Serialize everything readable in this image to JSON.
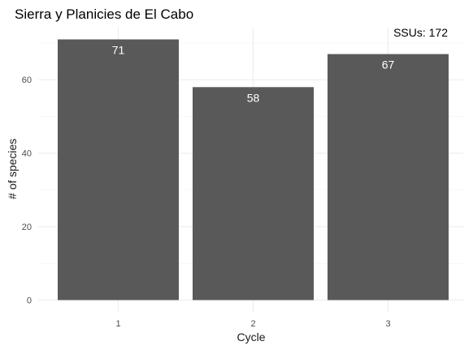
{
  "chart_data": {
    "type": "bar",
    "title": "Sierra y Planicies de El Cabo",
    "annotation": "SSUs: 172",
    "xlabel": "Cycle",
    "ylabel": "# of species",
    "categories": [
      "1",
      "2",
      "3"
    ],
    "values": [
      71,
      58,
      67
    ],
    "value_labels": [
      "71",
      "58",
      "67"
    ],
    "ylim": [
      0,
      71
    ],
    "yticks": [
      0,
      20,
      40,
      60
    ],
    "ytick_labels": [
      "0",
      "20",
      "40",
      "60"
    ],
    "grid": true,
    "legend": "none",
    "bar_color": "#595959",
    "label_color": "#ffffff",
    "grid_color": "#ebebeb"
  }
}
